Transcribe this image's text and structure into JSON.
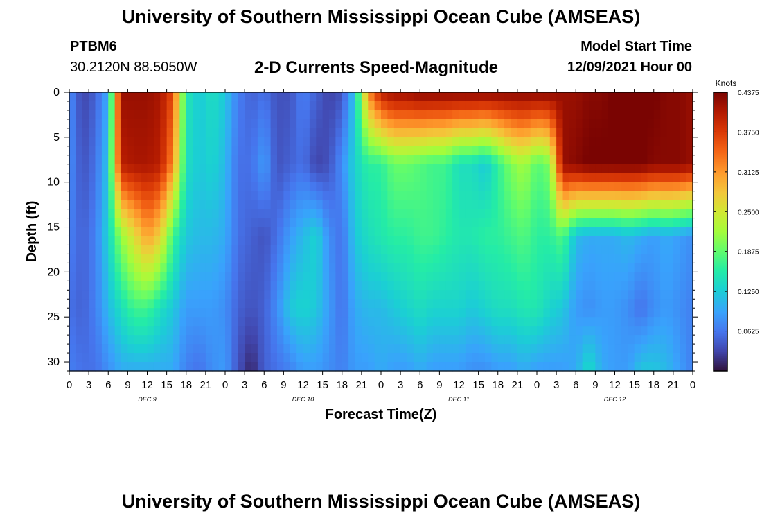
{
  "header": {
    "title": "University of Southern Mississippi Ocean Cube (AMSEAS)",
    "station_id": "PTBM6",
    "station_coords": "30.2120N  88.5050W",
    "plot_subtitle": "2-D Currents Speed-Magnitude",
    "model_start_label": "Model Start Time",
    "model_start_value": "12/09/2021 Hour 00"
  },
  "footer": {
    "title": "University of Southern Mississippi Ocean Cube (AMSEAS)"
  },
  "chart_data": {
    "type": "heatmap",
    "title": "2-D Currents Speed-Magnitude",
    "xlabel": "Forecast Time(Z)",
    "ylabel": "Depth (ft)",
    "x_tick_labels": [
      "0",
      "3",
      "6",
      "9",
      "12",
      "15",
      "18",
      "21",
      "0",
      "3",
      "6",
      "9",
      "12",
      "15",
      "18",
      "21",
      "0",
      "3",
      "6",
      "9",
      "12",
      "15",
      "18",
      "21",
      "0",
      "3",
      "6",
      "9",
      "12",
      "15",
      "18",
      "21",
      "0"
    ],
    "day_labels": [
      "DEC 9",
      "DEC 10",
      "DEC 11",
      "DEC 12"
    ],
    "xlim_hours": [
      0,
      96
    ],
    "ylim_ft": [
      0,
      31
    ],
    "y_ticks": [
      "0",
      "5",
      "10",
      "15",
      "20",
      "25",
      "30"
    ],
    "colorbar": {
      "label": "Knots",
      "min": 0,
      "max": 0.4375,
      "ticks": [
        "0.4375",
        "0.3750",
        "0.3125",
        "0.2500",
        "0.1875",
        "0.1250",
        "0.0625"
      ]
    },
    "depth_levels_ft": [
      0,
      8,
      16,
      24,
      31
    ],
    "forecast_hours": [
      0,
      2,
      4,
      6,
      8,
      10,
      12,
      14,
      16,
      18,
      20,
      22,
      24,
      26,
      28,
      30,
      32,
      34,
      36,
      38,
      40,
      42,
      44,
      46,
      48,
      50,
      52,
      54,
      56,
      58,
      60,
      62,
      64,
      66,
      68,
      70,
      72,
      74,
      76,
      78,
      80,
      82,
      84,
      86,
      88,
      90,
      92,
      94,
      96
    ],
    "speed_knots": [
      [
        0.08,
        0.03,
        0.05,
        0.1,
        0.42,
        0.42,
        0.42,
        0.41,
        0.36,
        0.15,
        0.12,
        0.14,
        0.12,
        0.07,
        0.05,
        0.06,
        0.04,
        0.04,
        0.07,
        0.05,
        0.03,
        0.04,
        0.12,
        0.32,
        0.4,
        0.42,
        0.42,
        0.43,
        0.43,
        0.43,
        0.43,
        0.43,
        0.43,
        0.43,
        0.43,
        0.43,
        0.43,
        0.43,
        0.42,
        0.42,
        0.43,
        0.43,
        0.44,
        0.44,
        0.44,
        0.44,
        0.43,
        0.43,
        0.42
      ],
      [
        0.08,
        0.04,
        0.06,
        0.12,
        0.4,
        0.41,
        0.41,
        0.4,
        0.32,
        0.14,
        0.12,
        0.13,
        0.11,
        0.06,
        0.06,
        0.09,
        0.04,
        0.05,
        0.06,
        0.03,
        0.04,
        0.08,
        0.13,
        0.16,
        0.16,
        0.19,
        0.19,
        0.18,
        0.17,
        0.17,
        0.14,
        0.14,
        0.12,
        0.16,
        0.2,
        0.22,
        0.18,
        0.2,
        0.42,
        0.43,
        0.44,
        0.44,
        0.44,
        0.44,
        0.44,
        0.43,
        0.43,
        0.43,
        0.42
      ],
      [
        0.07,
        0.05,
        0.07,
        0.13,
        0.21,
        0.26,
        0.31,
        0.27,
        0.17,
        0.12,
        0.11,
        0.11,
        0.1,
        0.06,
        0.05,
        0.04,
        0.06,
        0.09,
        0.11,
        0.13,
        0.08,
        0.06,
        0.12,
        0.14,
        0.15,
        0.16,
        0.16,
        0.17,
        0.17,
        0.16,
        0.15,
        0.15,
        0.16,
        0.16,
        0.17,
        0.18,
        0.16,
        0.16,
        0.18,
        0.11,
        0.1,
        0.1,
        0.1,
        0.11,
        0.1,
        0.09,
        0.1,
        0.09,
        0.08
      ],
      [
        0.06,
        0.05,
        0.07,
        0.11,
        0.14,
        0.17,
        0.17,
        0.14,
        0.12,
        0.09,
        0.09,
        0.09,
        0.08,
        0.05,
        0.04,
        0.05,
        0.08,
        0.12,
        0.13,
        0.12,
        0.09,
        0.06,
        0.1,
        0.11,
        0.11,
        0.12,
        0.13,
        0.14,
        0.13,
        0.13,
        0.13,
        0.12,
        0.13,
        0.14,
        0.14,
        0.15,
        0.15,
        0.13,
        0.12,
        0.09,
        0.08,
        0.09,
        0.09,
        0.08,
        0.06,
        0.08,
        0.09,
        0.08,
        0.07
      ],
      [
        0.07,
        0.06,
        0.06,
        0.08,
        0.1,
        0.1,
        0.1,
        0.1,
        0.1,
        0.07,
        0.06,
        0.08,
        0.09,
        0.04,
        0.01,
        0.05,
        0.06,
        0.07,
        0.09,
        0.09,
        0.08,
        0.07,
        0.09,
        0.09,
        0.1,
        0.09,
        0.09,
        0.1,
        0.09,
        0.09,
        0.09,
        0.08,
        0.08,
        0.09,
        0.09,
        0.1,
        0.09,
        0.09,
        0.09,
        0.1,
        0.14,
        0.1,
        0.09,
        0.09,
        0.12,
        0.12,
        0.11,
        0.09,
        0.07
      ]
    ]
  }
}
